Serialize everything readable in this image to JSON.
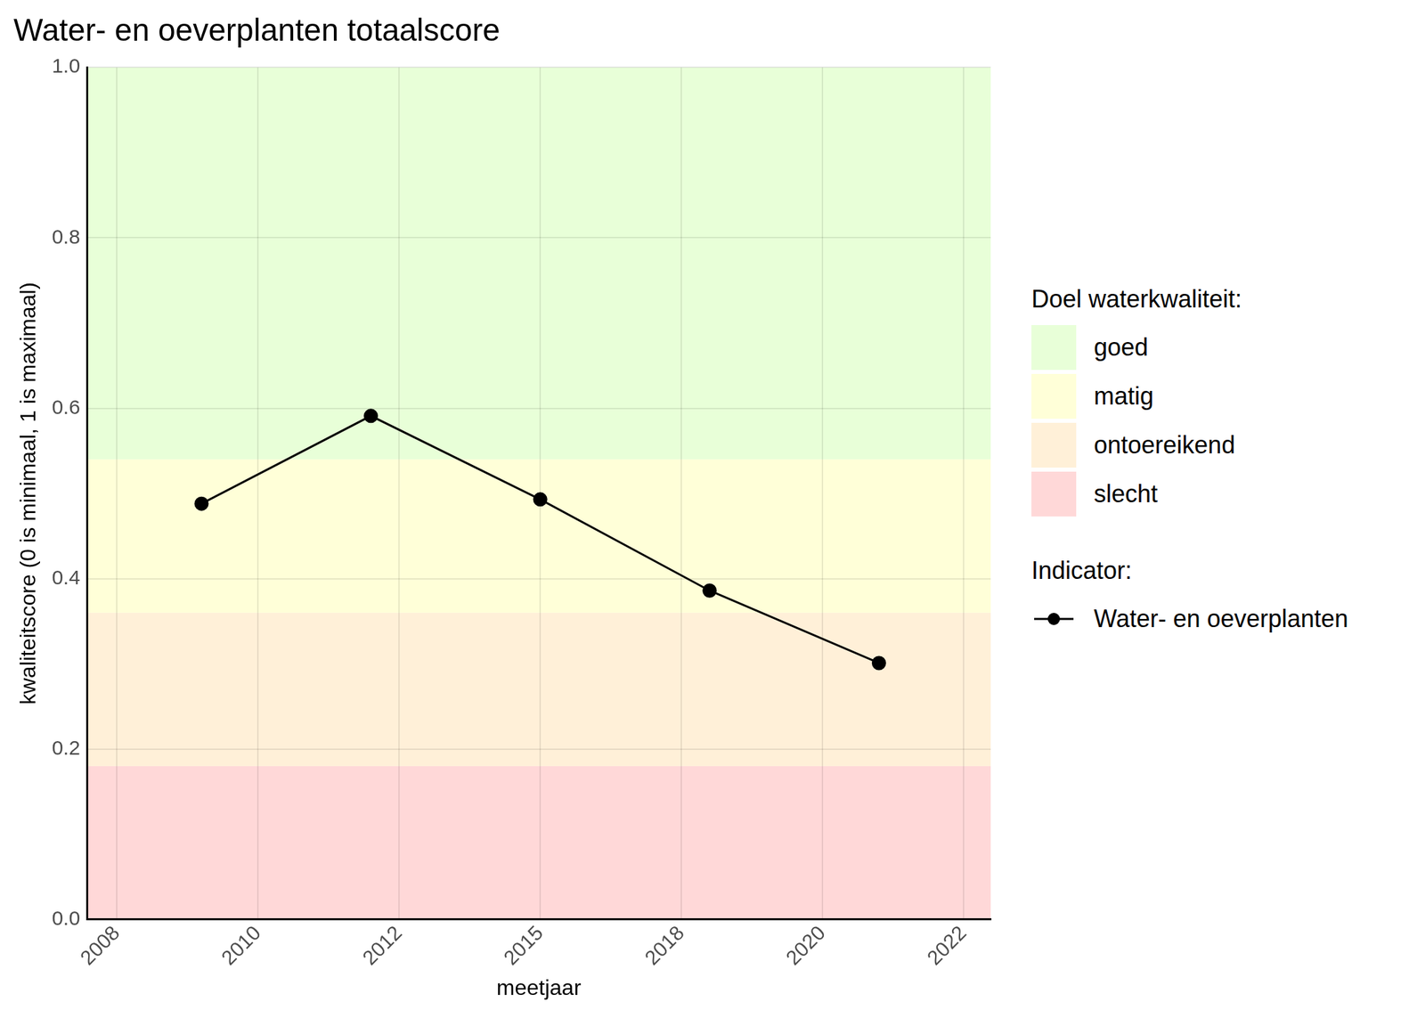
{
  "chart_data": {
    "type": "line",
    "title": "Water- en oeverplanten totaalscore",
    "x_label": "meetjaar",
    "y_label": "kwaliteitscore (0 is minimaal, 1 is maximaal)",
    "x": [
      2009,
      2012,
      2015,
      2018,
      2021
    ],
    "series": [
      {
        "name": "Water- en oeverplanten",
        "color": "#000000",
        "marker": "circle",
        "line_style": "solid",
        "values": [
          0.488,
          0.591,
          0.493,
          0.386,
          0.301
        ]
      }
    ],
    "xlim": [
      2006.97,
      2022.98
    ],
    "xticks": [
      {
        "value": 2007.5,
        "label": "2008"
      },
      {
        "value": 2010,
        "label": "2010"
      },
      {
        "value": 2012.5,
        "label": "2012"
      },
      {
        "value": 2015,
        "label": "2015"
      },
      {
        "value": 2017.5,
        "label": "2018"
      },
      {
        "value": 2020,
        "label": "2020"
      },
      {
        "value": 2022.5,
        "label": "2022"
      }
    ],
    "ylim": [
      0,
      1
    ],
    "yticks": [
      {
        "value": 0,
        "label": "0.0"
      },
      0.2,
      0.4,
      0.6,
      0.8,
      {
        "value": 1,
        "label": "1.0"
      }
    ],
    "grid": true,
    "legend": "right",
    "bands_title": "Doel waterkwaliteit:",
    "bands": [
      {
        "name": "goed",
        "from": 0.54,
        "to": 1,
        "color": "#e8ffd8"
      },
      {
        "name": "matig",
        "from": 0.36,
        "to": 0.54,
        "color": "#ffffd8"
      },
      {
        "name": "ontoereikend",
        "from": 0.18,
        "to": 0.36,
        "color": "#fff0d8"
      },
      {
        "name": "slecht",
        "from": 0,
        "to": 0.18,
        "color": "#ffd8d8"
      }
    ],
    "legend_title": "Indicator:"
  }
}
